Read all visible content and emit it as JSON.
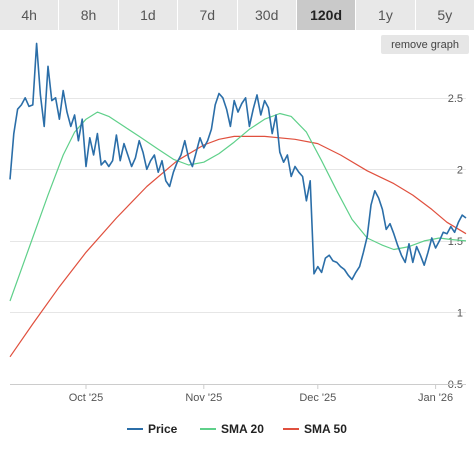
{
  "range_tabs": [
    {
      "label": "4h",
      "active": false
    },
    {
      "label": "8h",
      "active": false
    },
    {
      "label": "1d",
      "active": false
    },
    {
      "label": "7d",
      "active": false
    },
    {
      "label": "30d",
      "active": false
    },
    {
      "label": "120d",
      "active": true
    },
    {
      "label": "1y",
      "active": false
    },
    {
      "label": "5y",
      "active": false
    }
  ],
  "remove_graph_label": "remove graph",
  "chart_data": {
    "type": "line",
    "x_ticks": [
      "Oct '25",
      "Nov '25",
      "Dec '25",
      "Jan '26"
    ],
    "y_ticks": [
      0.5,
      1,
      1.5,
      2,
      2.5
    ],
    "ylim": [
      0.5,
      2.75
    ],
    "x_range": [
      "2025-09-11",
      "2026-01-09"
    ],
    "grid": true,
    "legend_position": "bottom",
    "series": [
      {
        "name": "Price",
        "color": "#2b6ea8",
        "points": [
          [
            "2025-09-11",
            1.93
          ],
          [
            "2025-09-12",
            2.25
          ],
          [
            "2025-09-13",
            2.42
          ],
          [
            "2025-09-14",
            2.45
          ],
          [
            "2025-09-15",
            2.5
          ],
          [
            "2025-09-16",
            2.44
          ],
          [
            "2025-09-17",
            2.45
          ],
          [
            "2025-09-18",
            2.88
          ],
          [
            "2025-09-19",
            2.52
          ],
          [
            "2025-09-20",
            2.3
          ],
          [
            "2025-09-21",
            2.72
          ],
          [
            "2025-09-22",
            2.48
          ],
          [
            "2025-09-23",
            2.5
          ],
          [
            "2025-09-24",
            2.35
          ],
          [
            "2025-09-25",
            2.55
          ],
          [
            "2025-09-26",
            2.4
          ],
          [
            "2025-09-27",
            2.3
          ],
          [
            "2025-09-28",
            2.38
          ],
          [
            "2025-09-29",
            2.2
          ],
          [
            "2025-09-30",
            2.35
          ],
          [
            "2025-10-01",
            2.02
          ],
          [
            "2025-10-02",
            2.22
          ],
          [
            "2025-10-03",
            2.1
          ],
          [
            "2025-10-04",
            2.25
          ],
          [
            "2025-10-05",
            2.03
          ],
          [
            "2025-10-06",
            2.06
          ],
          [
            "2025-10-07",
            2.02
          ],
          [
            "2025-10-08",
            2.06
          ],
          [
            "2025-10-09",
            2.24
          ],
          [
            "2025-10-10",
            2.06
          ],
          [
            "2025-10-11",
            2.18
          ],
          [
            "2025-10-12",
            2.1
          ],
          [
            "2025-10-13",
            2.02
          ],
          [
            "2025-10-14",
            2.08
          ],
          [
            "2025-10-15",
            2.2
          ],
          [
            "2025-10-16",
            2.12
          ],
          [
            "2025-10-17",
            2.0
          ],
          [
            "2025-10-18",
            2.06
          ],
          [
            "2025-10-19",
            2.1
          ],
          [
            "2025-10-20",
            1.98
          ],
          [
            "2025-10-21",
            2.06
          ],
          [
            "2025-10-22",
            1.92
          ],
          [
            "2025-10-23",
            1.88
          ],
          [
            "2025-10-24",
            1.98
          ],
          [
            "2025-10-25",
            2.05
          ],
          [
            "2025-10-26",
            2.1
          ],
          [
            "2025-10-27",
            2.2
          ],
          [
            "2025-10-28",
            2.08
          ],
          [
            "2025-10-29",
            2.02
          ],
          [
            "2025-10-30",
            2.12
          ],
          [
            "2025-10-31",
            2.22
          ],
          [
            "2025-11-01",
            2.15
          ],
          [
            "2025-11-02",
            2.2
          ],
          [
            "2025-11-03",
            2.28
          ],
          [
            "2025-11-04",
            2.45
          ],
          [
            "2025-11-05",
            2.53
          ],
          [
            "2025-11-06",
            2.5
          ],
          [
            "2025-11-07",
            2.42
          ],
          [
            "2025-11-08",
            2.3
          ],
          [
            "2025-11-09",
            2.48
          ],
          [
            "2025-11-10",
            2.4
          ],
          [
            "2025-11-11",
            2.46
          ],
          [
            "2025-11-12",
            2.5
          ],
          [
            "2025-11-13",
            2.3
          ],
          [
            "2025-11-14",
            2.42
          ],
          [
            "2025-11-15",
            2.52
          ],
          [
            "2025-11-16",
            2.38
          ],
          [
            "2025-11-17",
            2.48
          ],
          [
            "2025-11-18",
            2.43
          ],
          [
            "2025-11-19",
            2.25
          ],
          [
            "2025-11-20",
            2.38
          ],
          [
            "2025-11-21",
            2.12
          ],
          [
            "2025-11-22",
            2.05
          ],
          [
            "2025-11-23",
            2.1
          ],
          [
            "2025-11-24",
            1.95
          ],
          [
            "2025-11-25",
            2.02
          ],
          [
            "2025-11-26",
            1.98
          ],
          [
            "2025-11-27",
            1.95
          ],
          [
            "2025-11-28",
            1.78
          ],
          [
            "2025-11-29",
            1.92
          ],
          [
            "2025-11-30",
            1.27
          ],
          [
            "2025-12-01",
            1.32
          ],
          [
            "2025-12-02",
            1.28
          ],
          [
            "2025-12-03",
            1.38
          ],
          [
            "2025-12-04",
            1.4
          ],
          [
            "2025-12-05",
            1.36
          ],
          [
            "2025-12-06",
            1.35
          ],
          [
            "2025-12-07",
            1.32
          ],
          [
            "2025-12-08",
            1.3
          ],
          [
            "2025-12-09",
            1.26
          ],
          [
            "2025-12-10",
            1.23
          ],
          [
            "2025-12-11",
            1.28
          ],
          [
            "2025-12-12",
            1.32
          ],
          [
            "2025-12-13",
            1.42
          ],
          [
            "2025-12-14",
            1.53
          ],
          [
            "2025-12-15",
            1.75
          ],
          [
            "2025-12-16",
            1.85
          ],
          [
            "2025-12-17",
            1.8
          ],
          [
            "2025-12-18",
            1.72
          ],
          [
            "2025-12-19",
            1.58
          ],
          [
            "2025-12-20",
            1.62
          ],
          [
            "2025-12-21",
            1.55
          ],
          [
            "2025-12-22",
            1.47
          ],
          [
            "2025-12-23",
            1.4
          ],
          [
            "2025-12-24",
            1.35
          ],
          [
            "2025-12-25",
            1.48
          ],
          [
            "2025-12-26",
            1.35
          ],
          [
            "2025-12-27",
            1.46
          ],
          [
            "2025-12-28",
            1.4
          ],
          [
            "2025-12-29",
            1.33
          ],
          [
            "2025-12-30",
            1.42
          ],
          [
            "2025-12-31",
            1.52
          ],
          [
            "2026-01-01",
            1.45
          ],
          [
            "2026-01-02",
            1.5
          ],
          [
            "2026-01-03",
            1.56
          ],
          [
            "2026-01-04",
            1.55
          ],
          [
            "2026-01-05",
            1.6
          ],
          [
            "2026-01-06",
            1.56
          ],
          [
            "2026-01-07",
            1.63
          ],
          [
            "2026-01-08",
            1.68
          ],
          [
            "2026-01-09",
            1.66
          ]
        ]
      },
      {
        "name": "SMA 20",
        "color": "#5fd08a",
        "points": [
          [
            "2025-09-11",
            1.08
          ],
          [
            "2025-09-16",
            1.45
          ],
          [
            "2025-09-21",
            1.82
          ],
          [
            "2025-09-25",
            2.1
          ],
          [
            "2025-09-28",
            2.26
          ],
          [
            "2025-10-01",
            2.35
          ],
          [
            "2025-10-04",
            2.4
          ],
          [
            "2025-10-07",
            2.37
          ],
          [
            "2025-10-11",
            2.3
          ],
          [
            "2025-10-15",
            2.23
          ],
          [
            "2025-10-20",
            2.14
          ],
          [
            "2025-10-24",
            2.07
          ],
          [
            "2025-10-28",
            2.03
          ],
          [
            "2025-11-01",
            2.05
          ],
          [
            "2025-11-05",
            2.11
          ],
          [
            "2025-11-09",
            2.19
          ],
          [
            "2025-11-13",
            2.28
          ],
          [
            "2025-11-17",
            2.35
          ],
          [
            "2025-11-21",
            2.39
          ],
          [
            "2025-11-24",
            2.37
          ],
          [
            "2025-11-28",
            2.26
          ],
          [
            "2025-12-02",
            2.06
          ],
          [
            "2025-12-06",
            1.85
          ],
          [
            "2025-12-10",
            1.65
          ],
          [
            "2025-12-14",
            1.52
          ],
          [
            "2025-12-18",
            1.47
          ],
          [
            "2025-12-21",
            1.44
          ],
          [
            "2025-12-25",
            1.46
          ],
          [
            "2025-12-29",
            1.5
          ],
          [
            "2026-01-02",
            1.52
          ],
          [
            "2026-01-05",
            1.51
          ],
          [
            "2026-01-09",
            1.5
          ]
        ]
      },
      {
        "name": "SMA 50",
        "color": "#e0503e",
        "points": [
          [
            "2025-09-11",
            0.69
          ],
          [
            "2025-09-17",
            0.92
          ],
          [
            "2025-09-24",
            1.18
          ],
          [
            "2025-10-01",
            1.42
          ],
          [
            "2025-10-09",
            1.66
          ],
          [
            "2025-10-17",
            1.88
          ],
          [
            "2025-10-25",
            2.06
          ],
          [
            "2025-11-01",
            2.17
          ],
          [
            "2025-11-05",
            2.21
          ],
          [
            "2025-11-09",
            2.23
          ],
          [
            "2025-11-17",
            2.23
          ],
          [
            "2025-11-25",
            2.21
          ],
          [
            "2025-12-01",
            2.18
          ],
          [
            "2025-12-07",
            2.1
          ],
          [
            "2025-12-14",
            1.99
          ],
          [
            "2025-12-21",
            1.9
          ],
          [
            "2025-12-26",
            1.82
          ],
          [
            "2025-12-31",
            1.72
          ],
          [
            "2026-01-04",
            1.63
          ],
          [
            "2026-01-09",
            1.55
          ]
        ]
      }
    ]
  }
}
